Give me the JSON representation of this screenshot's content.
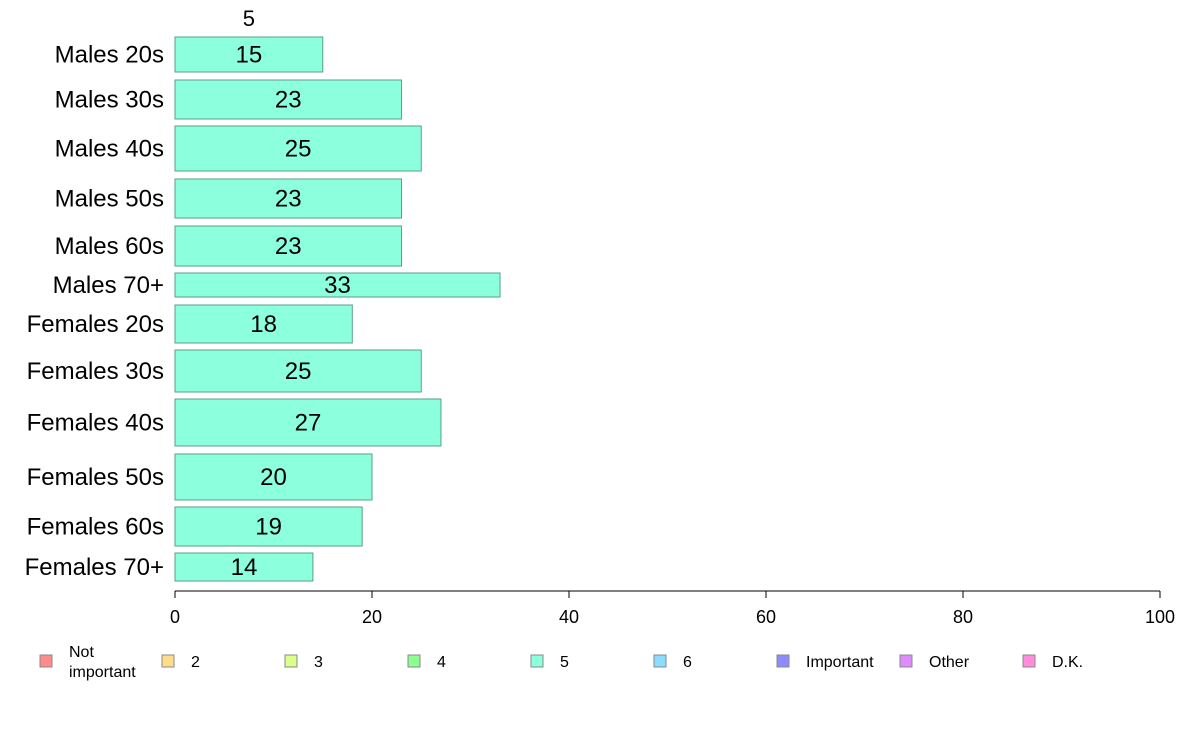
{
  "chart_data": {
    "type": "bar",
    "orientation": "horizontal",
    "stacked": true,
    "title": "",
    "xlabel": "",
    "ylabel": "",
    "xlim": [
      0,
      100
    ],
    "x_ticks": [
      0,
      20,
      40,
      60,
      80,
      100
    ],
    "grid": false,
    "legend_position": "bottom",
    "categories": [
      "Males 20s",
      "Males 30s",
      "Males 40s",
      "Males 50s",
      "Males 60s",
      "Males 70+",
      "Females 20s",
      "Females 30s",
      "Females 40s",
      "Females 50s",
      "Females 60s",
      "Females 70+"
    ],
    "visible_series_label": "5",
    "series": [
      {
        "name": "5",
        "color": "#8cffdc",
        "values": [
          15,
          23,
          25,
          23,
          23,
          33,
          18,
          25,
          27,
          20,
          19,
          14
        ]
      }
    ],
    "legend": [
      {
        "label": "Not important",
        "lines": [
          "Not",
          "important"
        ],
        "color": "#ff8c8c"
      },
      {
        "label": "2",
        "lines": [
          "2"
        ],
        "color": "#ffdc8c"
      },
      {
        "label": "3",
        "lines": [
          "3"
        ],
        "color": "#dcff8c"
      },
      {
        "label": "4",
        "lines": [
          "4"
        ],
        "color": "#8cff8c"
      },
      {
        "label": "5",
        "lines": [
          "5"
        ],
        "color": "#8cffdc"
      },
      {
        "label": "6",
        "lines": [
          "6"
        ],
        "color": "#8cdcff"
      },
      {
        "label": "Important",
        "lines": [
          "Important"
        ],
        "color": "#8c8cff"
      },
      {
        "label": "Other",
        "lines": [
          "Other"
        ],
        "color": "#dc8cff"
      },
      {
        "label": "D.K.",
        "lines": [
          "D.K."
        ],
        "color": "#ff8cdc"
      }
    ]
  }
}
